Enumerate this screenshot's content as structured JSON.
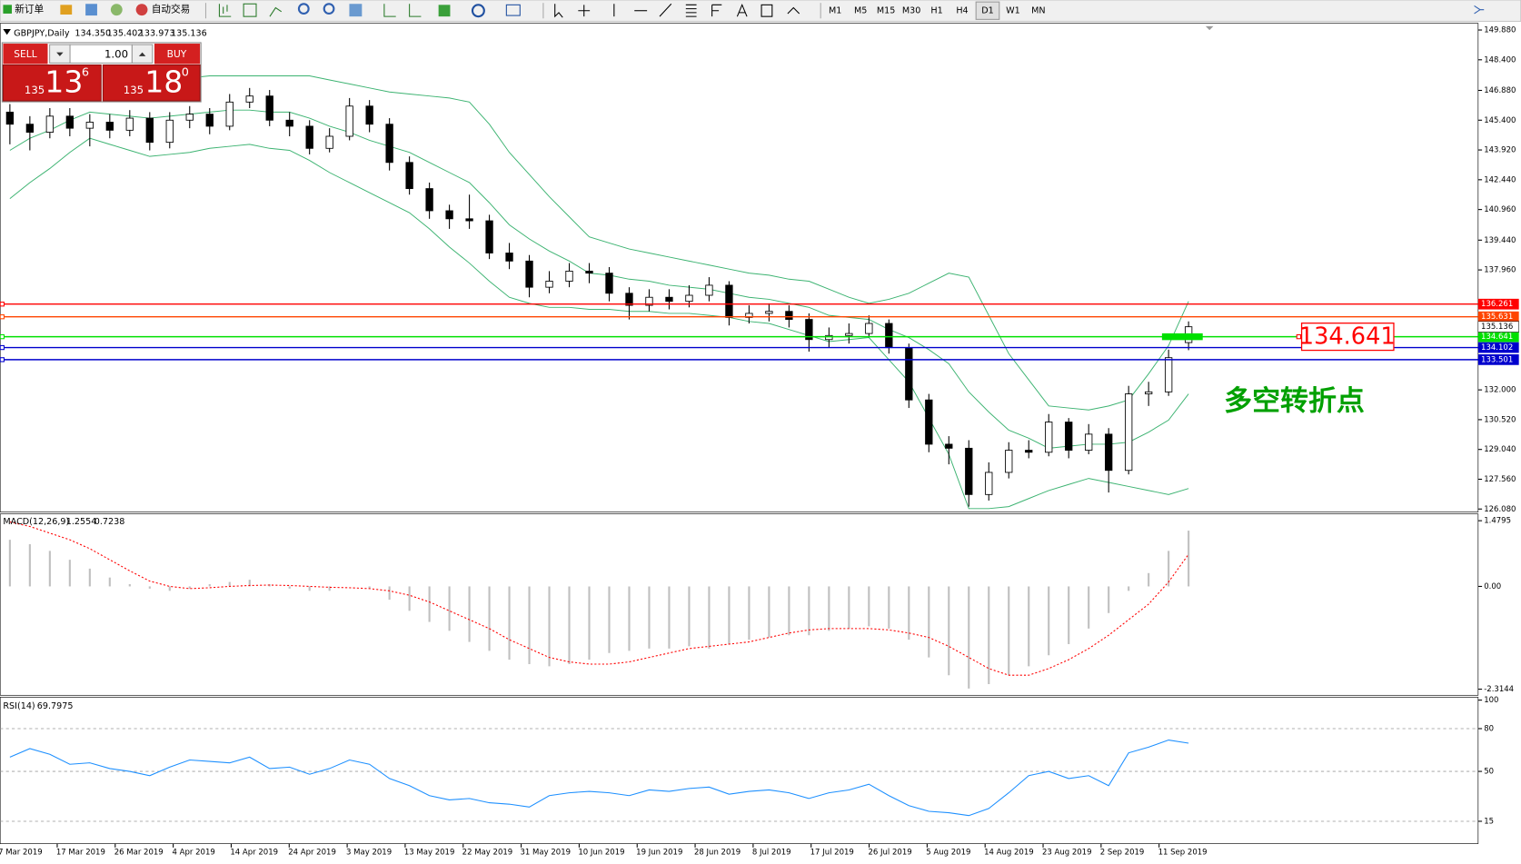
{
  "toolbar": {
    "new_order": "新订单",
    "auto_trading": "自动交易",
    "timeframes": [
      "M1",
      "M5",
      "M15",
      "M30",
      "H1",
      "H4",
      "D1",
      "W1",
      "MN"
    ],
    "active": "D1"
  },
  "trade_panel": {
    "sell": "SELL",
    "buy": "BUY",
    "lots": "1.00",
    "bid": [
      "135",
      "13",
      "6"
    ],
    "ask": [
      "135",
      "18",
      "0"
    ]
  },
  "time_axis": [
    "7 Mar 2019",
    "17 Mar 2019",
    "26 Mar 2019",
    "4 Apr 2019",
    "14 Apr 2019",
    "24 Apr 2019",
    "3 May 2019",
    "13 May 2019",
    "22 May 2019",
    "31 May 2019",
    "10 Jun 2019",
    "19 Jun 2019",
    "28 Jun 2019",
    "8 Jul 2019",
    "17 Jul 2019",
    "26 Jul 2019",
    "5 Aug 2019",
    "14 Aug 2019",
    "23 Aug 2019",
    "2 Sep 2019",
    "11 Sep 2019"
  ],
  "chart_data": [
    {
      "type": "candlestick",
      "title": "GBPJPY,Daily",
      "quote": [
        "134.350",
        "135.402",
        "133.973",
        "135.136"
      ],
      "open": [
        145.8,
        145.2,
        144.8,
        145.6,
        145.0,
        145.3,
        144.9,
        145.5,
        144.3,
        145.4,
        145.7,
        145.1,
        146.3,
        146.6,
        145.4,
        145.1,
        144.0,
        144.6,
        146.1,
        145.2,
        143.3,
        142.0,
        140.9,
        140.5,
        140.4,
        138.8,
        138.4,
        137.1,
        137.4,
        137.9,
        137.8,
        136.8,
        136.2,
        136.6,
        136.4,
        136.7,
        137.2,
        135.6,
        135.8,
        135.9,
        135.5,
        134.5,
        134.7,
        134.8,
        135.3,
        134.1,
        131.5,
        129.3,
        129.1,
        126.8,
        127.9,
        129.0,
        128.9,
        130.4,
        129.0,
        129.8,
        128.0,
        131.8,
        131.9,
        134.35
      ],
      "high": [
        146.2,
        145.6,
        146.0,
        146.0,
        145.7,
        145.7,
        145.9,
        145.8,
        145.8,
        146.1,
        146.0,
        146.7,
        147.0,
        146.9,
        145.8,
        145.4,
        145.0,
        146.5,
        146.4,
        145.5,
        143.6,
        142.3,
        141.2,
        141.7,
        140.7,
        139.3,
        138.7,
        137.9,
        138.3,
        138.3,
        138.1,
        137.1,
        137.0,
        137.0,
        137.2,
        137.6,
        137.4,
        136.2,
        136.3,
        136.2,
        135.8,
        135.1,
        135.3,
        135.7,
        135.5,
        134.3,
        131.8,
        129.7,
        129.5,
        128.4,
        129.4,
        129.5,
        130.8,
        130.6,
        130.3,
        130.1,
        132.2,
        132.4,
        134.0,
        135.402
      ],
      "low": [
        144.2,
        143.9,
        144.5,
        144.6,
        144.1,
        144.5,
        144.6,
        143.9,
        144.0,
        145.0,
        144.7,
        144.9,
        146.0,
        145.1,
        144.6,
        143.7,
        143.8,
        144.4,
        144.8,
        142.9,
        141.7,
        140.5,
        140.0,
        140.0,
        138.5,
        138.0,
        136.6,
        136.8,
        137.1,
        137.3,
        136.4,
        135.5,
        135.9,
        136.0,
        136.1,
        136.4,
        135.2,
        135.3,
        135.4,
        135.1,
        133.9,
        134.1,
        134.3,
        134.6,
        133.8,
        131.1,
        128.9,
        128.3,
        126.2,
        126.5,
        127.6,
        128.6,
        128.7,
        128.6,
        128.8,
        126.9,
        127.8,
        131.2,
        131.7,
        133.973
      ],
      "close": [
        145.2,
        144.8,
        145.6,
        145.0,
        145.3,
        144.9,
        145.5,
        144.3,
        145.4,
        145.7,
        145.1,
        146.3,
        146.6,
        145.4,
        145.1,
        144.0,
        144.6,
        146.1,
        145.2,
        143.3,
        142.0,
        140.9,
        140.5,
        140.4,
        138.8,
        138.4,
        137.1,
        137.4,
        137.9,
        137.8,
        136.8,
        136.2,
        136.6,
        136.4,
        136.7,
        137.2,
        135.6,
        135.8,
        135.9,
        135.5,
        134.5,
        134.7,
        134.8,
        135.3,
        134.1,
        131.5,
        129.3,
        129.1,
        126.8,
        127.9,
        129.0,
        128.9,
        130.4,
        129.0,
        129.8,
        128.0,
        131.8,
        131.9,
        133.6,
        135.136
      ],
      "upper": [
        146.3,
        146.6,
        146.8,
        147.0,
        147.1,
        147.2,
        147.3,
        147.4,
        147.5,
        147.5,
        147.6,
        147.6,
        147.6,
        147.6,
        147.6,
        147.6,
        147.4,
        147.2,
        147.0,
        146.8,
        146.7,
        146.6,
        146.5,
        146.3,
        145.2,
        143.8,
        142.7,
        141.6,
        140.6,
        139.6,
        139.3,
        139.0,
        138.8,
        138.6,
        138.4,
        138.2,
        138.0,
        137.8,
        137.7,
        137.5,
        137.4,
        137.0,
        136.6,
        136.3,
        136.5,
        136.8,
        137.3,
        137.8,
        137.6,
        135.7,
        133.8,
        132.5,
        131.2,
        131.1,
        131.0,
        131.2,
        131.5,
        132.8,
        134.2,
        136.4
      ],
      "middle": [
        143.9,
        144.5,
        144.9,
        145.4,
        145.8,
        145.7,
        145.6,
        145.5,
        145.6,
        145.7,
        145.8,
        145.9,
        145.9,
        145.8,
        145.8,
        145.5,
        145.1,
        144.8,
        144.4,
        144.1,
        143.8,
        143.3,
        142.8,
        142.3,
        141.3,
        140.2,
        139.5,
        138.9,
        138.4,
        137.8,
        137.7,
        137.5,
        137.4,
        137.2,
        137.1,
        137.0,
        136.8,
        136.6,
        136.5,
        136.3,
        136.1,
        135.7,
        135.6,
        135.5,
        135.0,
        134.6,
        134.0,
        133.3,
        131.9,
        130.9,
        130.0,
        129.6,
        129.1,
        129.2,
        129.3,
        129.3,
        129.4,
        129.9,
        130.5,
        131.8
      ],
      "lower": [
        141.5,
        142.3,
        143.0,
        143.8,
        144.5,
        144.2,
        143.9,
        143.6,
        143.7,
        143.8,
        144.0,
        144.1,
        144.2,
        144.0,
        143.9,
        143.4,
        142.8,
        142.3,
        141.8,
        141.3,
        140.8,
        140.0,
        139.1,
        138.3,
        137.4,
        136.6,
        136.3,
        136.1,
        136.1,
        136.0,
        136.0,
        135.9,
        135.9,
        135.8,
        135.8,
        135.7,
        135.6,
        135.4,
        135.3,
        135.0,
        134.7,
        134.4,
        134.5,
        134.6,
        133.5,
        132.4,
        130.6,
        128.8,
        126.1,
        126.1,
        126.2,
        126.6,
        127.0,
        127.3,
        127.6,
        127.4,
        127.2,
        127.0,
        126.8,
        127.1
      ],
      "band_color": "#3cb371",
      "levels": [
        {
          "value": 136.261,
          "color": "#ff0000"
        },
        {
          "value": 135.631,
          "color": "#ff4500"
        },
        {
          "value": 134.641,
          "color": "#00e000"
        },
        {
          "value": 134.102,
          "color": "#0000cd"
        },
        {
          "value": 133.501,
          "color": "#0000cd"
        }
      ],
      "annotation": "多空转折点",
      "annotation_color": "#00a000",
      "ylim": [
        125.98,
        150.07
      ],
      "yticks": [
        {
          "value": 149.88,
          "label": "149.880"
        },
        {
          "value": 148.4,
          "label": "148.400"
        },
        {
          "value": 146.88,
          "label": "146.880"
        },
        {
          "value": 145.4,
          "label": "145.400"
        },
        {
          "value": 143.92,
          "label": "143.920"
        },
        {
          "value": 142.44,
          "label": "142.440"
        },
        {
          "value": 140.96,
          "label": "140.960"
        },
        {
          "value": 139.44,
          "label": "139.440"
        },
        {
          "value": 137.96,
          "label": "137.960"
        },
        {
          "value": 132,
          "label": "132.000"
        },
        {
          "value": 130.52,
          "label": "130.520"
        },
        {
          "value": 129.04,
          "label": "129.040"
        },
        {
          "value": 127.56,
          "label": "127.560"
        },
        {
          "value": 126.08,
          "label": "126.080"
        }
      ]
    },
    {
      "type": "macd",
      "title": "MACD(12,26,9)",
      "histogram": [
        1.05,
        0.95,
        0.8,
        0.6,
        0.4,
        0.2,
        0.05,
        -0.05,
        -0.1,
        -0.05,
        0.05,
        0.1,
        0.15,
        0.05,
        -0.05,
        -0.1,
        -0.1,
        0.0,
        -0.05,
        -0.3,
        -0.55,
        -0.8,
        -1.0,
        -1.25,
        -1.45,
        -1.65,
        -1.75,
        -1.8,
        -1.75,
        -1.65,
        -1.5,
        -1.45,
        -1.4,
        -1.4,
        -1.35,
        -1.4,
        -1.3,
        -1.2,
        -1.15,
        -1.1,
        -1.1,
        -1.0,
        -0.95,
        -0.9,
        -0.95,
        -1.2,
        -1.6,
        -2.0,
        -2.3,
        -2.2,
        -2.0,
        -1.8,
        -1.55,
        -1.3,
        -0.95,
        -0.6,
        -0.1,
        0.3,
        0.8,
        1.2554
      ],
      "signal": [
        1.45,
        1.35,
        1.2,
        1.05,
        0.85,
        0.6,
        0.35,
        0.12,
        0.0,
        -0.05,
        -0.03,
        0.0,
        0.02,
        0.03,
        0.02,
        0.0,
        -0.02,
        -0.03,
        -0.05,
        -0.1,
        -0.2,
        -0.35,
        -0.55,
        -0.75,
        -0.95,
        -1.2,
        -1.4,
        -1.6,
        -1.7,
        -1.75,
        -1.75,
        -1.7,
        -1.6,
        -1.5,
        -1.4,
        -1.35,
        -1.3,
        -1.25,
        -1.15,
        -1.05,
        -0.98,
        -0.95,
        -0.95,
        -0.95,
        -0.98,
        -1.05,
        -1.15,
        -1.35,
        -1.6,
        -1.85,
        -2.0,
        -2.0,
        -1.85,
        -1.65,
        -1.4,
        -1.1,
        -0.75,
        -0.4,
        0.1,
        0.7238
      ],
      "histogram_color": "#c0c0c0",
      "signal_color": "#ff0000",
      "ylim": [
        -2.43,
        1.61
      ],
      "yticks": [
        1.4795,
        {
          "value": 0,
          "label": "0.00"
        },
        -2.3144
      ]
    },
    {
      "type": "rsi",
      "title": "RSI(14)",
      "values": [
        60,
        66,
        62,
        55,
        56,
        52,
        50,
        47,
        53,
        58,
        57,
        56,
        60,
        52,
        53,
        48,
        52,
        58,
        55,
        45,
        40,
        33,
        30,
        31,
        28,
        27,
        25,
        33,
        35,
        36,
        35,
        33,
        37,
        36,
        38,
        39,
        34,
        36,
        37,
        35,
        31,
        35,
        37,
        41,
        33,
        26,
        22,
        21,
        19,
        24,
        35,
        47,
        50,
        45,
        47,
        40,
        63,
        67,
        72,
        69.7975
      ],
      "color": "#1e90ff",
      "levels": [
        80,
        50,
        15
      ],
      "ylim": [
        0,
        100
      ],
      "yticks": [
        100,
        80,
        50,
        15
      ]
    }
  ]
}
